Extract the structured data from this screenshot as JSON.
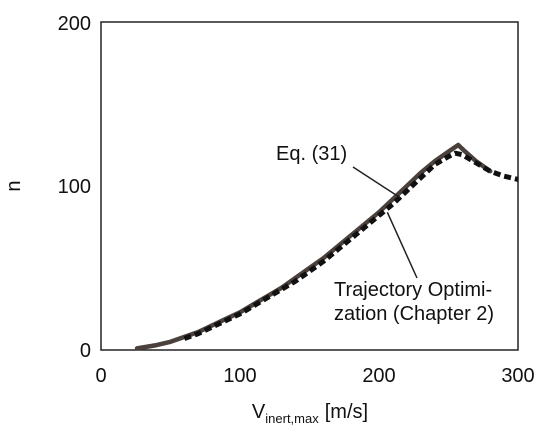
{
  "chart_data": {
    "type": "line",
    "title": "",
    "xlabel": {
      "main": "V",
      "subscript": "inert,max",
      "unit": "[m/s]"
    },
    "ylabel": "n",
    "xlim": [
      0,
      300
    ],
    "ylim": [
      0,
      200
    ],
    "xticks": [
      0,
      100,
      200,
      300
    ],
    "yticks": [
      0,
      100,
      200
    ],
    "grid": false,
    "series": [
      {
        "style": "solid",
        "color": "#4a403c",
        "x": [
          26,
          40,
          50,
          60,
          70,
          80,
          90,
          100,
          110,
          120,
          130,
          140,
          150,
          160,
          170,
          180,
          190,
          200,
          210,
          220,
          230,
          240,
          250,
          257,
          262,
          270,
          280
        ],
        "y": [
          1,
          3,
          5,
          8,
          11,
          15,
          19,
          23,
          28,
          33,
          38,
          44,
          50,
          56,
          63,
          70,
          77,
          84,
          92,
          100,
          108,
          115,
          121,
          125,
          121,
          115,
          109
        ]
      },
      {
        "style": "dashed",
        "color": "#111111",
        "x": [
          60,
          70,
          80,
          90,
          100,
          110,
          120,
          130,
          140,
          150,
          160,
          170,
          180,
          190,
          200,
          210,
          220,
          230,
          240,
          250,
          255,
          260,
          270,
          280,
          290,
          300
        ],
        "y": [
          7,
          10,
          14,
          18,
          22,
          27,
          32,
          37,
          42,
          48,
          54,
          61,
          68,
          75,
          82,
          89,
          97,
          105,
          113,
          118,
          120,
          119,
          114,
          109,
          106,
          104
        ]
      }
    ],
    "annotations": [
      {
        "lines": [
          "Eq. (31)"
        ],
        "point_to": {
          "x": 215,
          "y": 93
        },
        "text_at": {
          "x": 135,
          "y": 117
        }
      },
      {
        "lines": [
          "Trajectory Optimi-",
          "zation (Chapter 2)"
        ],
        "point_to": {
          "x": 206,
          "y": 84
        },
        "text_at": {
          "x": 166,
          "y": 73
        }
      }
    ]
  }
}
